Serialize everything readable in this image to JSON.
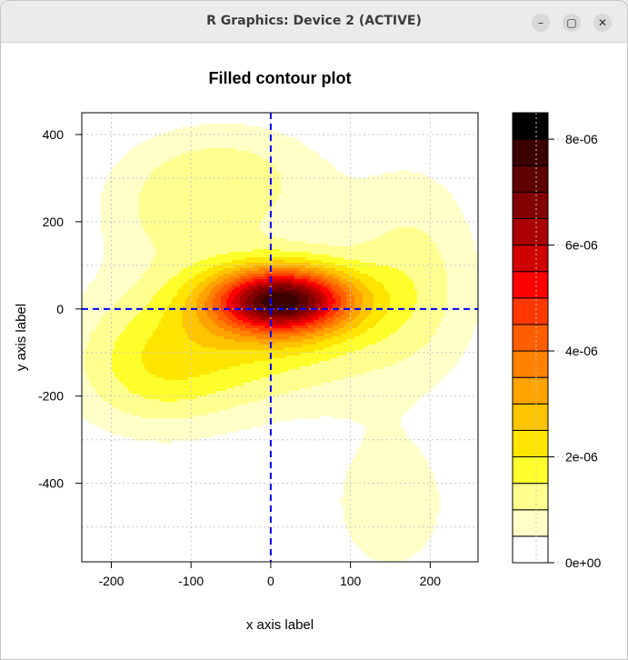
{
  "window": {
    "title": "R Graphics: Device 2 (ACTIVE)",
    "minimize_label": "–",
    "maximize_label": "▢",
    "close_label": "✕"
  },
  "chart_data": {
    "type": "filled-contour",
    "title": "Filled contour plot",
    "xlabel": "x axis label",
    "ylabel": "y axis label",
    "xlim": [
      -237,
      260
    ],
    "ylim": [
      -580,
      450
    ],
    "x_ticks": [
      -200,
      -100,
      0,
      100,
      200
    ],
    "y_ticks": [
      -400,
      -200,
      0,
      200,
      400
    ],
    "x_tick_labels": [
      "-200",
      "-100",
      "0",
      "100",
      "200"
    ],
    "y_tick_labels": [
      "-400",
      "-200",
      "0",
      "200",
      "400"
    ],
    "grid": true,
    "reference_lines": {
      "x": 0,
      "y": 0,
      "color": "#0000ff",
      "style": "dashed"
    },
    "peak": {
      "x": 15,
      "y": 20,
      "value": 8.4e-06
    },
    "levels": [
      0,
      5e-07,
      1e-06,
      1.5e-06,
      2e-06,
      2.5e-06,
      3e-06,
      3.5e-06,
      4e-06,
      4.5e-06,
      5e-06,
      5.5e-06,
      6e-06,
      6.5e-06,
      7e-06,
      7.5e-06,
      8e-06,
      8.5e-06
    ],
    "colors": [
      "#ffffff",
      "#ffffc8",
      "#ffff8f",
      "#ffff2b",
      "#ffe500",
      "#ffc400",
      "#ffa300",
      "#ff8100",
      "#ff5e00",
      "#ff3800",
      "#ff0000",
      "#d10000",
      "#a90000",
      "#830000",
      "#5e0000",
      "#3b0000",
      "#000000"
    ],
    "legend": {
      "position": "right",
      "range": [
        0,
        8.5e-06
      ],
      "ticks": [
        0,
        2e-06,
        4e-06,
        6e-06,
        8e-06
      ],
      "tick_labels": [
        "0e+00",
        "2e-06",
        "4e-06",
        "6e-06",
        "8e-06"
      ]
    }
  }
}
